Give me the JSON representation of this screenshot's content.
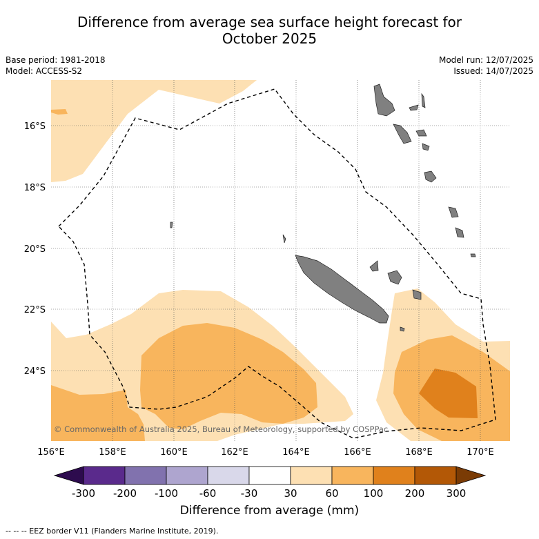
{
  "title": {
    "line1": "Difference from average sea surface height forecast for",
    "line2": "October 2025"
  },
  "meta": {
    "base_period": "Base period: 1981-2018",
    "model": "Model: ACCESS-S2",
    "model_run": "Model run: 12/07/2025",
    "issued": "Issued: 14/07/2025"
  },
  "map": {
    "lat_labels": [
      "16°S",
      "18°S",
      "20°S",
      "22°S",
      "24°S"
    ],
    "lon_labels": [
      "156°E",
      "158°E",
      "160°E",
      "162°E",
      "164°E",
      "166°E",
      "168°E",
      "170°E"
    ],
    "copyright": "© Commonwealth of Australia 2025, Bureau of Meteorology, supported by COSPPac",
    "land_color": "#808080"
  },
  "colorbar": {
    "ticks": [
      "-300",
      "-200",
      "-100",
      "-60",
      "-30",
      "30",
      "60",
      "100",
      "200",
      "300"
    ],
    "colors": [
      "#2d0b4e",
      "#5a2a8c",
      "#8172ae",
      "#aea5cf",
      "#d9d8ea",
      "#ffffff",
      "#fde0b3",
      "#f8b55d",
      "#e0811c",
      "#b35806",
      "#7a3b05"
    ],
    "title": "Difference from average (mm)"
  },
  "footnote": "-- -- -- EEZ border V11 (Flanders Marine Institute, 2019)."
}
